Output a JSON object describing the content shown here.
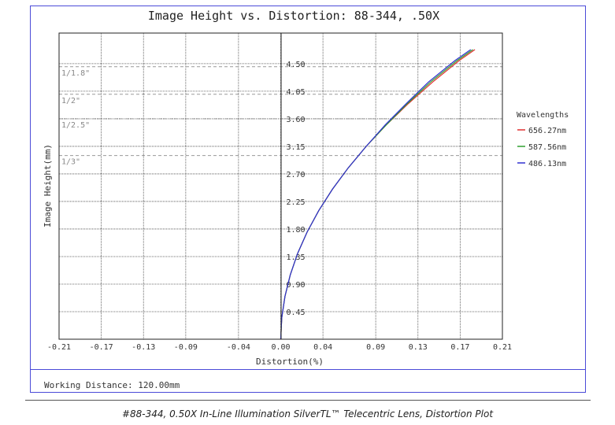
{
  "chart_data": {
    "type": "line",
    "title": "Image Height vs. Distortion: 88-344, .50X",
    "xlabel": "Distortion(%)",
    "ylabel": "Image Height(mm)",
    "xlim": [
      -0.21,
      0.21
    ],
    "ylim": [
      0,
      5.0
    ],
    "x_ticks": [
      "-0.21",
      "-0.17",
      "-0.13",
      "-0.09",
      "-0.04",
      "0.00",
      "0.04",
      "0.09",
      "0.13",
      "0.17",
      "0.21"
    ],
    "x_tick_values": [
      -0.21,
      -0.17,
      -0.13,
      -0.09,
      -0.04,
      0.0,
      0.04,
      0.09,
      0.13,
      0.17,
      0.21
    ],
    "y_ticks": [
      "0.45",
      "0.90",
      "1.35",
      "1.80",
      "2.25",
      "2.70",
      "3.15",
      "3.60",
      "4.05",
      "4.50"
    ],
    "y_tick_values": [
      0.45,
      0.9,
      1.35,
      1.8,
      2.25,
      2.7,
      3.15,
      3.6,
      4.05,
      4.5
    ],
    "grid": true,
    "legend_title": "Wavelengths",
    "legend_position": "right",
    "sensor_markers": [
      {
        "label": "1/1.8\"",
        "y": 4.45
      },
      {
        "label": "1/2\"",
        "y": 4.0
      },
      {
        "label": "1/2.5\"",
        "y": 3.6
      },
      {
        "label": "1/3\"",
        "y": 3.0
      }
    ],
    "series": [
      {
        "name": "656.27nm",
        "color": "#e03030",
        "x": [
          0.0,
          0.001,
          0.004,
          0.009,
          0.016,
          0.025,
          0.036,
          0.049,
          0.064,
          0.081,
          0.1,
          0.121,
          0.144,
          0.169,
          0.184
        ],
        "y": [
          0.0,
          0.35,
          0.7,
          1.05,
          1.4,
          1.75,
          2.1,
          2.45,
          2.8,
          3.15,
          3.5,
          3.85,
          4.2,
          4.55,
          4.73
        ]
      },
      {
        "name": "587.56nm",
        "color": "#30a030",
        "x": [
          0.0,
          0.001,
          0.004,
          0.009,
          0.016,
          0.025,
          0.036,
          0.049,
          0.064,
          0.081,
          0.1,
          0.12,
          0.142,
          0.167,
          0.182
        ],
        "y": [
          0.0,
          0.35,
          0.7,
          1.05,
          1.4,
          1.75,
          2.1,
          2.45,
          2.8,
          3.15,
          3.5,
          3.85,
          4.2,
          4.55,
          4.73
        ]
      },
      {
        "name": "486.13nm",
        "color": "#3030d0",
        "x": [
          0.0,
          0.001,
          0.004,
          0.009,
          0.016,
          0.025,
          0.036,
          0.049,
          0.064,
          0.081,
          0.099,
          0.119,
          0.14,
          0.165,
          0.18
        ],
        "y": [
          0.0,
          0.35,
          0.7,
          1.05,
          1.4,
          1.75,
          2.1,
          2.45,
          2.8,
          3.15,
          3.5,
          3.85,
          4.2,
          4.55,
          4.73
        ]
      }
    ]
  },
  "working_distance": "Working Distance: 120.00mm",
  "caption": "#88-344, 0.50X In-Line Illumination SilverTL™ Telecentric Lens, Distortion Plot"
}
